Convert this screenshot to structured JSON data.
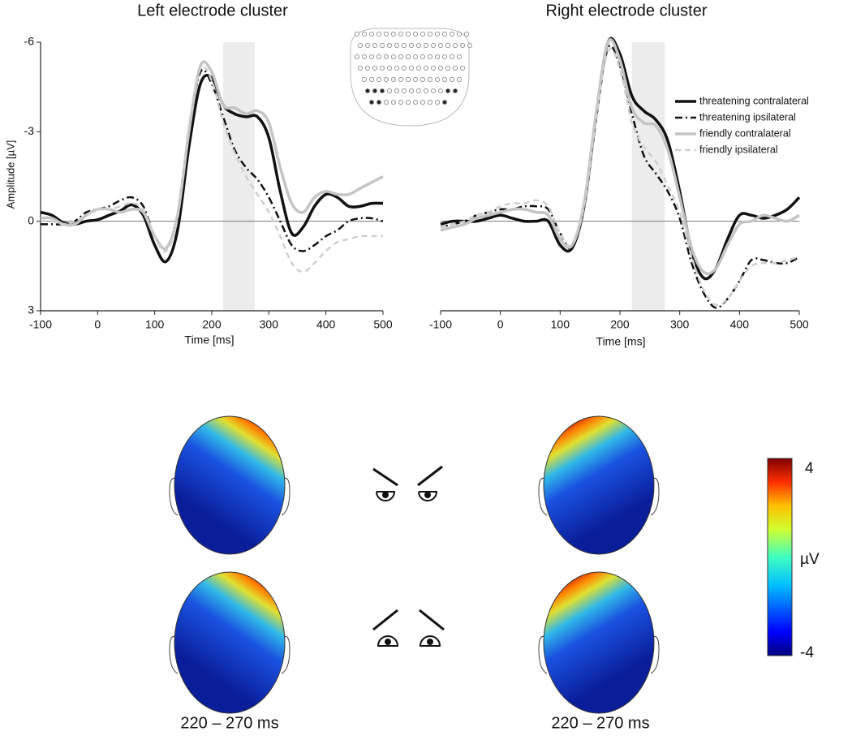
{
  "chart_data": [
    {
      "type": "line",
      "title": "Left electrode cluster",
      "x_label": "Time [ms]",
      "y_label": "Amplitude [µV]",
      "x": [
        -100,
        -80,
        -60,
        -40,
        -20,
        0,
        20,
        40,
        60,
        80,
        100,
        120,
        140,
        160,
        180,
        200,
        220,
        240,
        260,
        280,
        300,
        320,
        340,
        360,
        380,
        400,
        420,
        440,
        460,
        480,
        500
      ],
      "xlim": [
        -100,
        500
      ],
      "xticks": [
        -100,
        0,
        100,
        200,
        300,
        400,
        500
      ],
      "ylim": [
        3,
        -6
      ],
      "yticks": [
        -6,
        -3,
        0,
        3
      ],
      "zero_line": true,
      "highlight": [
        220,
        275
      ],
      "series": [
        {
          "color": "#111111",
          "dash": "solid",
          "linewidth": 3.5,
          "values": [
            -0.3,
            -0.2,
            0.05,
            0.1,
            0,
            -0.05,
            -0.2,
            -0.35,
            -0.55,
            -0.2,
            0.8,
            1.35,
            0.3,
            -2.5,
            -4.6,
            -4.8,
            -3.9,
            -3.6,
            -3.5,
            -3.5,
            -2.8,
            -1.0,
            0.4,
            0.2,
            -0.5,
            -0.9,
            -0.8,
            -0.5,
            -0.5,
            -0.6,
            -0.6
          ]
        },
        {
          "color": "#111111",
          "dash": "dashdot",
          "linewidth": 2.5,
          "values": [
            0.1,
            0.1,
            0.1,
            0,
            -0.3,
            -0.4,
            -0.5,
            -0.7,
            -0.8,
            -0.5,
            0.5,
            0.9,
            -0.2,
            -3.0,
            -5.0,
            -4.6,
            -3.5,
            -2.4,
            -1.8,
            -1.4,
            -0.8,
            0,
            0.8,
            1.0,
            0.8,
            0.5,
            0.3,
            0,
            -0.1,
            -0.1,
            0
          ]
        },
        {
          "color": "#c4c4c4",
          "dash": "solid",
          "linewidth": 3.5,
          "values": [
            -0.1,
            -0.1,
            0.1,
            0.1,
            -0.2,
            -0.4,
            -0.4,
            -0.3,
            -0.4,
            -0.3,
            0.5,
            0.9,
            -0.2,
            -3.0,
            -5.2,
            -5.0,
            -3.9,
            -3.8,
            -3.6,
            -3.7,
            -3.3,
            -1.8,
            -0.6,
            -0.3,
            -0.8,
            -1.0,
            -0.9,
            -0.9,
            -1.1,
            -1.3,
            -1.5
          ]
        },
        {
          "color": "#cfcfcf",
          "dash": "dashed",
          "linewidth": 2.5,
          "values": [
            0,
            0,
            0.1,
            0,
            -0.2,
            -0.4,
            -0.4,
            -0.5,
            -0.6,
            -0.4,
            0.5,
            1.0,
            -0.1,
            -3.2,
            -5.1,
            -4.7,
            -3.3,
            -2.3,
            -1.5,
            -0.9,
            -0.3,
            0.5,
            1.4,
            1.7,
            1.4,
            1.0,
            0.7,
            0.6,
            0.5,
            0.5,
            0.5
          ]
        }
      ]
    },
    {
      "type": "line",
      "title": "Right electrode cluster",
      "x_label": "Time [ms]",
      "x": [
        -100,
        -80,
        -60,
        -40,
        -20,
        0,
        20,
        40,
        60,
        80,
        100,
        120,
        140,
        160,
        180,
        200,
        220,
        240,
        260,
        280,
        300,
        320,
        340,
        360,
        380,
        400,
        420,
        440,
        460,
        480,
        500
      ],
      "xlim": [
        -100,
        500
      ],
      "xticks": [
        -100,
        0,
        100,
        200,
        300,
        400,
        500
      ],
      "ylim": [
        3,
        -6
      ],
      "zero_line": true,
      "highlight": [
        220,
        275
      ],
      "legend": "upper right",
      "series": [
        {
          "name": "threatening contralateral",
          "color": "#111111",
          "dash": "solid",
          "linewidth": 3.5,
          "values": [
            0.1,
            0,
            0,
            0,
            -0.1,
            -0.2,
            -0.1,
            0,
            0,
            0,
            0.8,
            0.9,
            -0.5,
            -3.5,
            -6.0,
            -5.6,
            -4.2,
            -3.7,
            -3.4,
            -2.7,
            -1.0,
            1.0,
            1.9,
            1.6,
            0.6,
            -0.2,
            -0.2,
            -0.1,
            -0.2,
            -0.4,
            -0.8
          ]
        },
        {
          "name": "threatening ipsilateral",
          "color": "#111111",
          "dash": "dashdot",
          "linewidth": 2.5,
          "values": [
            0.2,
            0.1,
            0,
            -0.2,
            -0.3,
            -0.4,
            -0.4,
            -0.5,
            -0.5,
            -0.4,
            0.4,
            0.9,
            -0.5,
            -3.4,
            -5.8,
            -5.2,
            -3.6,
            -2.2,
            -1.6,
            -1.0,
            -0.1,
            1.4,
            2.4,
            2.9,
            2.6,
            2.0,
            1.3,
            1.3,
            1.4,
            1.4,
            1.2
          ]
        },
        {
          "name": "friendly contralateral",
          "color": "#c4c4c4",
          "dash": "solid",
          "linewidth": 3.5,
          "values": [
            0.3,
            0.2,
            0.1,
            -0.1,
            -0.2,
            -0.3,
            -0.4,
            -0.4,
            -0.3,
            -0.2,
            0.6,
            0.8,
            -0.6,
            -3.6,
            -6.0,
            -5.4,
            -3.8,
            -3.3,
            -3.2,
            -2.4,
            -0.8,
            0.9,
            1.7,
            1.6,
            0.8,
            0.1,
            0,
            -0.2,
            -0.1,
            0,
            -0.2
          ]
        },
        {
          "name": "friendly ipsilateral",
          "color": "#cfcfcf",
          "dash": "dashed",
          "linewidth": 2.5,
          "values": [
            0.2,
            0.1,
            0,
            -0.2,
            -0.3,
            -0.5,
            -0.6,
            -0.6,
            -0.7,
            -0.5,
            0.4,
            0.8,
            -0.5,
            -3.4,
            -5.7,
            -5.1,
            -3.3,
            -2.5,
            -2.0,
            -1.2,
            -0.3,
            1.2,
            2.3,
            2.8,
            2.6,
            2.0,
            1.5,
            1.4,
            1.4,
            1.3,
            1.2
          ]
        }
      ]
    }
  ],
  "topomaps": {
    "time_labels": [
      "220 – 270 ms",
      "220 – 270 ms"
    ]
  },
  "colorbar": {
    "max": 4,
    "min": -4,
    "label": "µV"
  }
}
